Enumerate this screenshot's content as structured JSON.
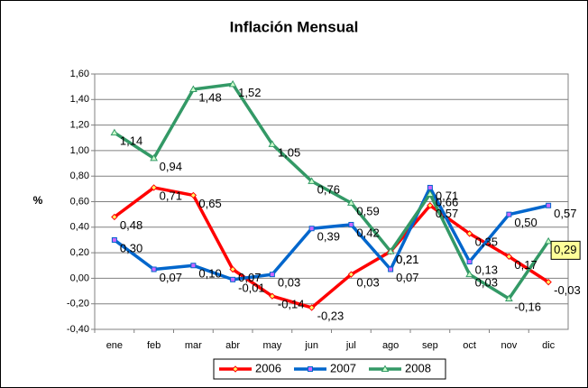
{
  "chart_data": {
    "type": "line",
    "title": "Inflación Mensual",
    "y_label": "%",
    "categories": [
      "ene",
      "feb",
      "mar",
      "abr",
      "may",
      "jun",
      "jul",
      "ago",
      "sep",
      "oct",
      "nov",
      "dic"
    ],
    "series": [
      {
        "name": "2006",
        "color": "#ff0000",
        "marker": "diamond",
        "values": [
          0.48,
          0.71,
          0.65,
          0.07,
          -0.14,
          -0.23,
          0.03,
          0.21,
          0.57,
          0.35,
          0.17,
          -0.03
        ],
        "value_labels": [
          "0,48",
          "0,71",
          "0,65",
          "0,07",
          "-0,14",
          "-0,23",
          "0,03",
          "0,21",
          "0,57",
          "0,35",
          "0,17",
          "-0,03"
        ]
      },
      {
        "name": "2007",
        "color": "#0066cc",
        "marker": "square",
        "values": [
          0.3,
          0.07,
          0.1,
          -0.01,
          0.03,
          0.39,
          0.42,
          0.07,
          0.71,
          0.13,
          0.5,
          0.57
        ],
        "value_labels": [
          "0,30",
          "0,07",
          "0,10",
          "-0,01",
          "0,03",
          "0,39",
          "0,42",
          "0,07",
          "0,71",
          "0,13",
          "0,50",
          "0,57"
        ]
      },
      {
        "name": "2008",
        "color": "#339966",
        "marker": "triangle",
        "values": [
          1.14,
          0.94,
          1.48,
          1.52,
          1.05,
          0.76,
          0.59,
          0.21,
          0.66,
          0.03,
          -0.16,
          0.29
        ],
        "value_labels": [
          "1,14",
          "0,94",
          "1,48",
          "1,52",
          "1,05",
          "0,76",
          "0,59",
          "0,21",
          "0,66",
          "0,03",
          "-0,16",
          "0,29"
        ]
      }
    ],
    "ylim": [
      -0.4,
      1.6
    ],
    "yticks": [
      {
        "value": -0.4,
        "label": "-0,40"
      },
      {
        "value": -0.2,
        "label": "-0,20"
      },
      {
        "value": 0,
        "label": "0,00"
      },
      {
        "value": 0.2,
        "label": "0,20"
      },
      {
        "value": 0.4,
        "label": "0,40"
      },
      {
        "value": 0.6,
        "label": "0,60"
      },
      {
        "value": 0.8,
        "label": "0,80"
      },
      {
        "value": 1.0,
        "label": "1,00"
      },
      {
        "value": 1.2,
        "label": "1,20"
      },
      {
        "value": 1.4,
        "label": "1,40"
      },
      {
        "value": 1.6,
        "label": "1,60"
      }
    ],
    "grid": true,
    "legend": "bottom"
  }
}
